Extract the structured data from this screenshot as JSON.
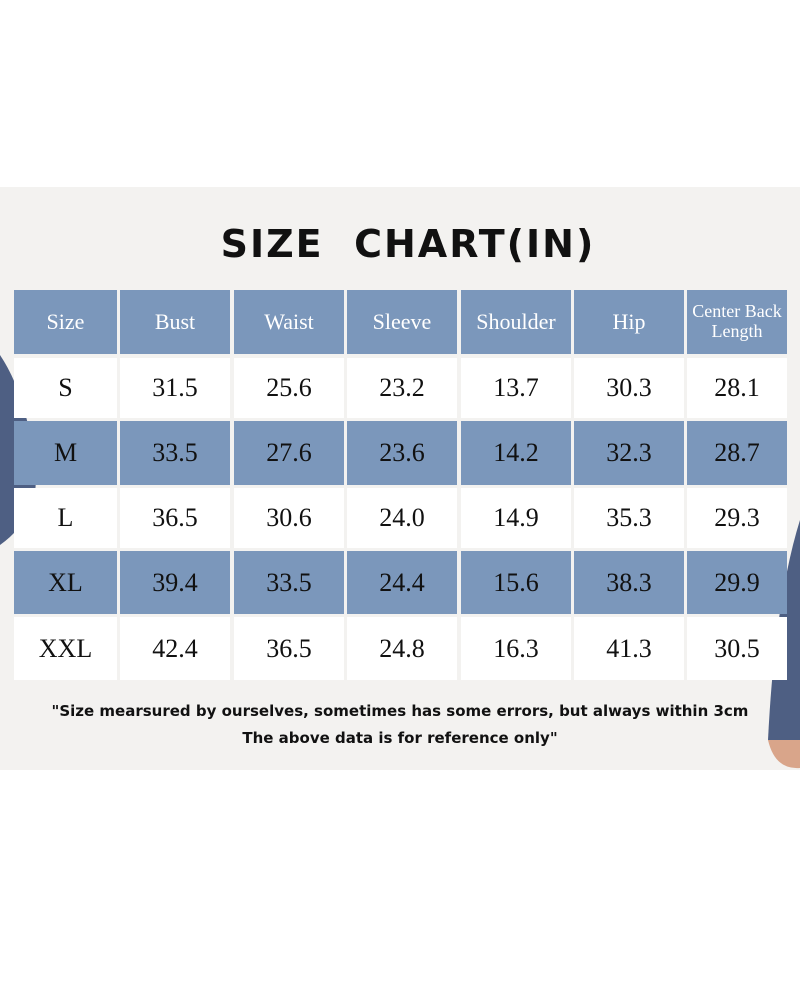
{
  "title": "SIZE  CHART(IN)",
  "table": {
    "header": [
      "Size",
      "Bust",
      "Waist",
      "Sleeve",
      "Shoulder",
      "Hip",
      "Center Back Length"
    ],
    "rows": [
      [
        "S",
        "31.5",
        "25.6",
        "23.2",
        "13.7",
        "30.3",
        "28.1"
      ],
      [
        "M",
        "33.5",
        "27.6",
        "23.6",
        "14.2",
        "32.3",
        "28.7"
      ],
      [
        "L",
        "36.5",
        "30.6",
        "24.0",
        "14.9",
        "35.3",
        "29.3"
      ],
      [
        "XL",
        "39.4",
        "33.5",
        "24.4",
        "15.6",
        "38.3",
        "29.9"
      ],
      [
        "XXL",
        "42.4",
        "36.5",
        "24.8",
        "16.3",
        "41.3",
        "30.5"
      ]
    ]
  },
  "notes": [
    "\"Size mearsured by ourselves, sometimes has some errors, but always within 3cm",
    "The above data is for reference only\""
  ]
}
